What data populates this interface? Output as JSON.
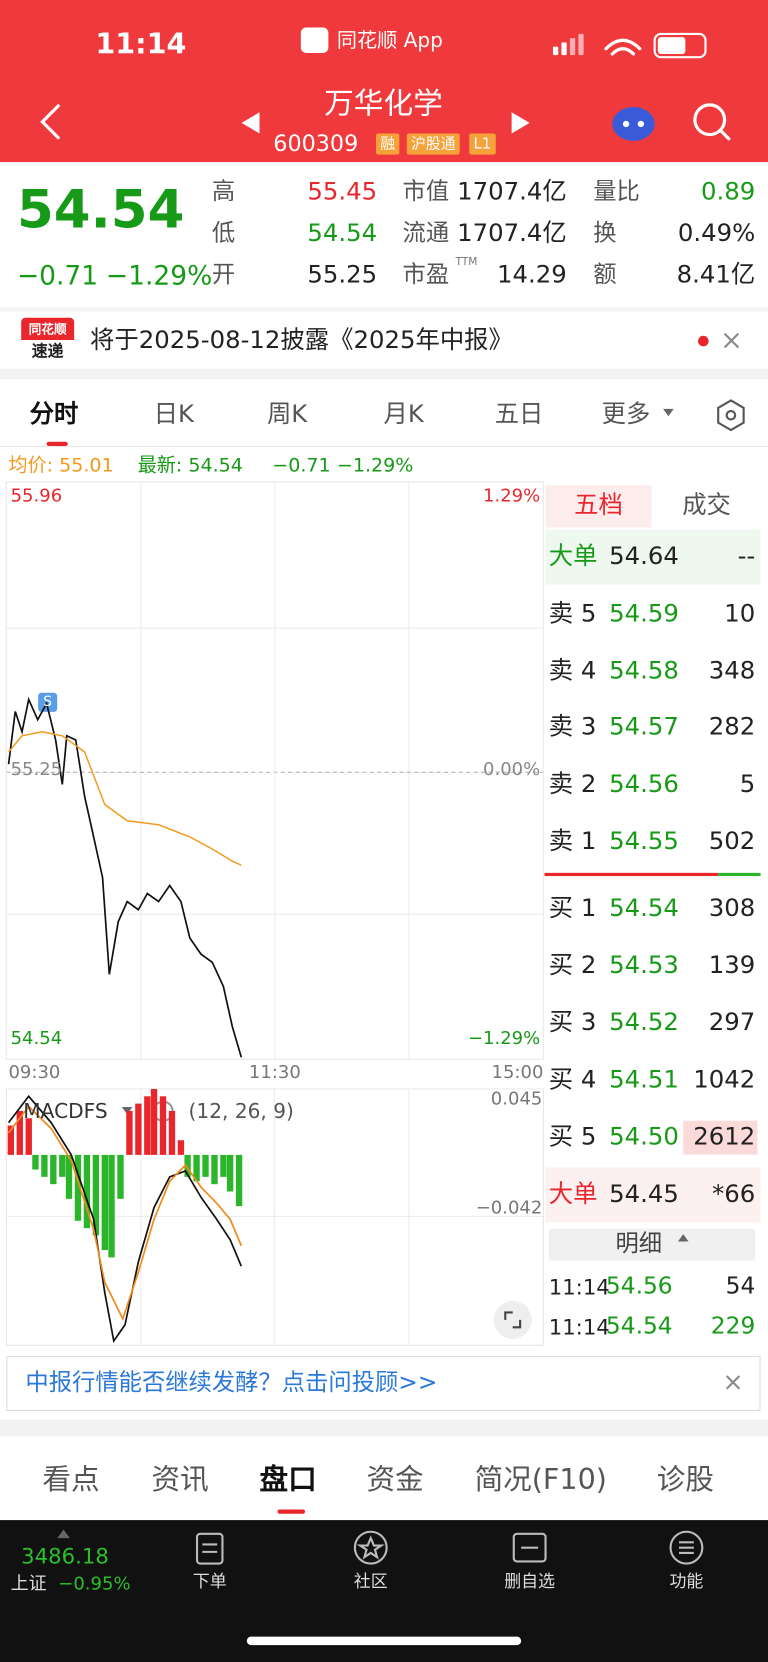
{
  "status": {
    "time": "11:14",
    "app": "同花顺 App"
  },
  "header": {
    "title": "万华化学",
    "code": "600309",
    "tags": [
      "融",
      "沪股通",
      "L1"
    ]
  },
  "quote": {
    "price": "54.54",
    "change": "−0.71",
    "change_pct": "−1.29%",
    "stats": [
      [
        {
          "label": "高",
          "value": "55.45"
        },
        {
          "label": "市值",
          "value": "1707.4亿"
        },
        {
          "label": "量比",
          "value": "0.89"
        }
      ],
      [
        {
          "label": "低",
          "value": "54.54"
        },
        {
          "label": "流通",
          "value": "1707.4亿"
        },
        {
          "label": "换",
          "value": "0.49%"
        }
      ],
      [
        {
          "label": "开",
          "value": "55.25"
        },
        {
          "label": "市盈",
          "sup": "TTM",
          "value": "14.29"
        },
        {
          "label": "额",
          "value": "8.41亿"
        }
      ]
    ]
  },
  "notice": {
    "logo_top": "同花顺",
    "logo_bottom": "速递",
    "text": "将于2025-08-12披露《2025年中报》"
  },
  "tabs": [
    "分时",
    "日K",
    "周K",
    "月K",
    "五日",
    "更多"
  ],
  "info": {
    "avg": "均价: 55.01",
    "last": "最新: 54.54",
    "change": "−0.71",
    "change_pct": "−1.29%"
  },
  "chart_data": [
    {
      "type": "line",
      "xlim": [
        0,
        240
      ],
      "xticks": [
        {
          "value": 0,
          "label": "09:30"
        },
        {
          "value": 120,
          "label": "11:30"
        },
        {
          "value": 240,
          "label": "15:00"
        }
      ],
      "ylim": [
        54.54,
        55.96
      ],
      "yticks": [
        55.96,
        55.25,
        54.54
      ],
      "y2lim": [
        -1.29,
        1.29
      ],
      "y2ticks": [
        {
          "value": 1.29,
          "label": "1.29%"
        },
        {
          "value": 0,
          "label": "0.00%"
        },
        {
          "value": -1.29,
          "label": "−1.29%"
        }
      ],
      "annotations": [
        "S"
      ],
      "series": [
        {
          "color": "#111111",
          "x": [
            1,
            4,
            7,
            10,
            14,
            18,
            22,
            25,
            27,
            31,
            35,
            39,
            43,
            46,
            50,
            54,
            59,
            63,
            68,
            73,
            78,
            82,
            87,
            92,
            97,
            101,
            105
          ],
          "values": [
            55.27,
            55.4,
            55.35,
            55.43,
            55.38,
            55.42,
            55.33,
            55.22,
            55.34,
            55.33,
            55.19,
            55.09,
            54.99,
            54.75,
            54.88,
            54.93,
            54.91,
            54.95,
            54.93,
            54.97,
            54.93,
            54.84,
            54.8,
            54.78,
            54.72,
            54.62,
            54.545
          ]
        },
        {
          "color": "#f39a1e",
          "x": [
            1,
            7,
            16,
            25,
            35,
            44,
            54,
            68,
            82,
            92,
            101,
            105
          ],
          "values": [
            55.3,
            55.34,
            55.35,
            55.34,
            55.3,
            55.17,
            55.13,
            55.12,
            55.09,
            55.06,
            55.03,
            55.02
          ]
        }
      ]
    },
    {
      "type": "macd",
      "title": "MACDFS",
      "params": "(12, 26, 9)",
      "xlim": [
        0,
        240
      ],
      "ylim": [
        -0.13,
        0.045
      ],
      "yticks": [
        0.045,
        {
          "value": -0.042,
          "label": "−0.042"
        }
      ],
      "up_color": "#e8262c",
      "down_color": "#2bb52b",
      "histogram": {
        "x": [
          2,
          6,
          10,
          13,
          17,
          21,
          25,
          28,
          32,
          36,
          40,
          44,
          47,
          51,
          55,
          59,
          63,
          66,
          70,
          74,
          78,
          81,
          85,
          89,
          93,
          97,
          100,
          104
        ],
        "values": [
          0.02,
          0.03,
          0.025,
          -0.01,
          -0.015,
          -0.02,
          -0.015,
          -0.03,
          -0.045,
          -0.05,
          -0.055,
          -0.065,
          -0.07,
          -0.03,
          0.03,
          0.035,
          0.04,
          0.045,
          0.04,
          0.03,
          0.01,
          -0.015,
          -0.018,
          -0.015,
          -0.02,
          -0.015,
          -0.025,
          -0.035
        ]
      },
      "series": [
        {
          "color": "#111111",
          "x": [
            1,
            10,
            20,
            29,
            39,
            44,
            48,
            53,
            59,
            66,
            73,
            80,
            87,
            94,
            100,
            105
          ],
          "values": [
            0.022,
            0.04,
            0.022,
            0,
            -0.044,
            -0.094,
            -0.127,
            -0.116,
            -0.073,
            -0.036,
            -0.015,
            -0.011,
            -0.029,
            -0.044,
            -0.058,
            -0.076
          ]
        },
        {
          "color": "#f08a1c",
          "x": [
            1,
            10,
            20,
            29,
            39,
            44,
            52,
            59,
            66,
            73,
            80,
            87,
            94,
            100,
            105
          ],
          "values": [
            0.015,
            0.033,
            0.018,
            -0.004,
            -0.051,
            -0.087,
            -0.112,
            -0.08,
            -0.044,
            -0.018,
            -0.007,
            -0.022,
            -0.033,
            -0.044,
            -0.062
          ]
        }
      ]
    }
  ],
  "order_book": {
    "tabs": [
      "五档",
      "成交"
    ],
    "big_top": {
      "label": "大单",
      "price": "54.64",
      "volume": "--"
    },
    "asks": [
      {
        "label": "卖 5",
        "price": "54.59",
        "volume": "10"
      },
      {
        "label": "卖 4",
        "price": "54.58",
        "volume": "348"
      },
      {
        "label": "卖 3",
        "price": "54.57",
        "volume": "282"
      },
      {
        "label": "卖 2",
        "price": "54.56",
        "volume": "5"
      },
      {
        "label": "卖 1",
        "price": "54.55",
        "volume": "502"
      }
    ],
    "bids": [
      {
        "label": "买 1",
        "price": "54.54",
        "volume": "308"
      },
      {
        "label": "买 2",
        "price": "54.53",
        "volume": "139"
      },
      {
        "label": "买 3",
        "price": "54.52",
        "volume": "297"
      },
      {
        "label": "买 4",
        "price": "54.51",
        "volume": "1042"
      },
      {
        "label": "买 5",
        "price": "54.50",
        "volume": "2612"
      }
    ],
    "big_bottom": {
      "label": "大单",
      "price": "54.45",
      "volume": "*66"
    },
    "detail_title": "明细",
    "details": [
      {
        "time": "11:14",
        "price": "54.56",
        "volume": "54"
      },
      {
        "time": "11:14",
        "price": "54.54",
        "volume": "229"
      }
    ]
  },
  "banner": "中报行情能否继续发酵？点击问投顾>>",
  "bottom_tabs": [
    "看点",
    "资讯",
    "盘口",
    "资金",
    "简况(F10)",
    "诊股"
  ],
  "index": {
    "value": "3486.18",
    "name": "上证",
    "change_pct": "−0.95%"
  },
  "toolbar": [
    "下单",
    "社区",
    "删自选",
    "功能"
  ]
}
